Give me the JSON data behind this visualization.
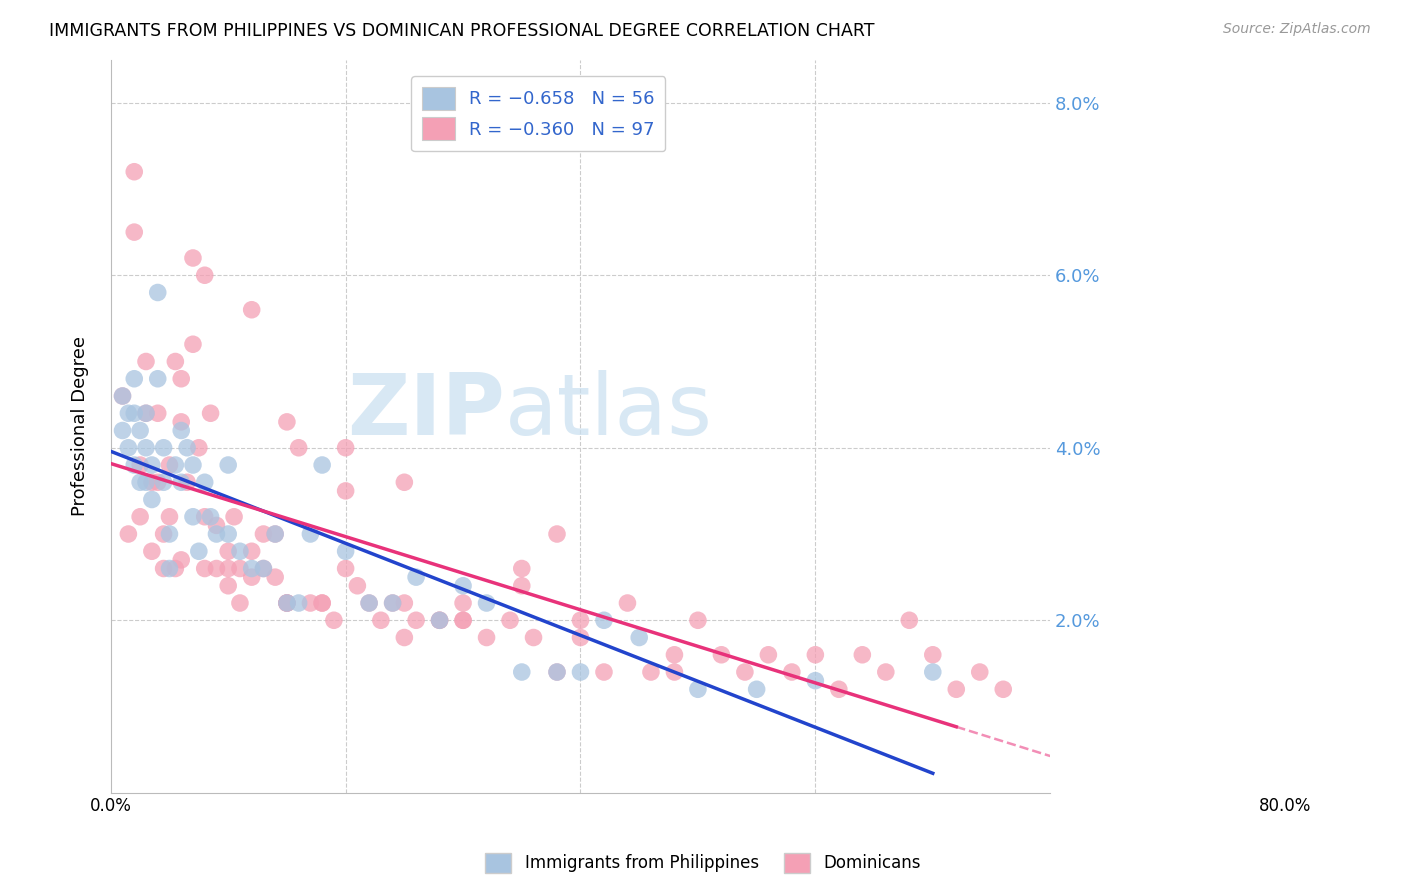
{
  "title": "IMMIGRANTS FROM PHILIPPINES VS DOMINICAN PROFESSIONAL DEGREE CORRELATION CHART",
  "source": "Source: ZipAtlas.com",
  "ylabel": "Professional Degree",
  "xlim": [
    0.0,
    0.8
  ],
  "ylim": [
    0.0,
    0.085
  ],
  "phil_color": "#a8c4e0",
  "dom_color": "#f4a0b5",
  "phil_line_color": "#2244cc",
  "dom_line_color": "#e8327a",
  "watermark_color": "#c8dff0",
  "phil_R": "-0.658",
  "phil_N": "56",
  "dom_R": "-0.360",
  "dom_N": "97",
  "philippines_x": [
    0.01,
    0.01,
    0.015,
    0.015,
    0.02,
    0.02,
    0.02,
    0.025,
    0.025,
    0.03,
    0.03,
    0.03,
    0.035,
    0.035,
    0.04,
    0.04,
    0.045,
    0.045,
    0.05,
    0.05,
    0.055,
    0.06,
    0.06,
    0.065,
    0.07,
    0.07,
    0.075,
    0.08,
    0.085,
    0.09,
    0.1,
    0.1,
    0.11,
    0.12,
    0.13,
    0.14,
    0.15,
    0.16,
    0.17,
    0.18,
    0.2,
    0.22,
    0.24,
    0.26,
    0.28,
    0.3,
    0.32,
    0.35,
    0.38,
    0.4,
    0.42,
    0.45,
    0.5,
    0.55,
    0.6,
    0.7
  ],
  "philippines_y": [
    0.046,
    0.042,
    0.044,
    0.04,
    0.048,
    0.044,
    0.038,
    0.042,
    0.036,
    0.044,
    0.04,
    0.036,
    0.038,
    0.034,
    0.058,
    0.048,
    0.04,
    0.036,
    0.03,
    0.026,
    0.038,
    0.042,
    0.036,
    0.04,
    0.038,
    0.032,
    0.028,
    0.036,
    0.032,
    0.03,
    0.038,
    0.03,
    0.028,
    0.026,
    0.026,
    0.03,
    0.022,
    0.022,
    0.03,
    0.038,
    0.028,
    0.022,
    0.022,
    0.025,
    0.02,
    0.024,
    0.022,
    0.014,
    0.014,
    0.014,
    0.02,
    0.018,
    0.012,
    0.012,
    0.013,
    0.014
  ],
  "dominican_x": [
    0.01,
    0.015,
    0.02,
    0.02,
    0.025,
    0.025,
    0.03,
    0.03,
    0.035,
    0.035,
    0.04,
    0.04,
    0.045,
    0.045,
    0.05,
    0.05,
    0.055,
    0.06,
    0.06,
    0.065,
    0.07,
    0.075,
    0.08,
    0.08,
    0.085,
    0.09,
    0.09,
    0.1,
    0.1,
    0.105,
    0.11,
    0.11,
    0.12,
    0.12,
    0.13,
    0.13,
    0.14,
    0.14,
    0.15,
    0.15,
    0.16,
    0.17,
    0.18,
    0.19,
    0.2,
    0.21,
    0.22,
    0.23,
    0.24,
    0.25,
    0.26,
    0.28,
    0.3,
    0.32,
    0.34,
    0.36,
    0.38,
    0.4,
    0.42,
    0.44,
    0.46,
    0.48,
    0.5,
    0.52,
    0.54,
    0.56,
    0.58,
    0.6,
    0.62,
    0.64,
    0.66,
    0.68,
    0.7,
    0.72,
    0.74,
    0.76,
    0.1,
    0.12,
    0.15,
    0.18,
    0.08,
    0.07,
    0.055,
    0.06,
    0.3,
    0.35,
    0.4,
    0.48,
    0.38,
    0.28,
    0.2,
    0.25,
    0.3,
    0.15,
    0.2,
    0.25,
    0.35
  ],
  "dominican_y": [
    0.046,
    0.03,
    0.072,
    0.065,
    0.032,
    0.038,
    0.05,
    0.044,
    0.036,
    0.028,
    0.044,
    0.036,
    0.03,
    0.026,
    0.038,
    0.032,
    0.026,
    0.027,
    0.043,
    0.036,
    0.052,
    0.04,
    0.026,
    0.032,
    0.044,
    0.031,
    0.026,
    0.028,
    0.024,
    0.032,
    0.026,
    0.022,
    0.028,
    0.025,
    0.03,
    0.026,
    0.03,
    0.025,
    0.043,
    0.022,
    0.04,
    0.022,
    0.022,
    0.02,
    0.026,
    0.024,
    0.022,
    0.02,
    0.022,
    0.022,
    0.02,
    0.02,
    0.02,
    0.018,
    0.02,
    0.018,
    0.014,
    0.02,
    0.014,
    0.022,
    0.014,
    0.014,
    0.02,
    0.016,
    0.014,
    0.016,
    0.014,
    0.016,
    0.012,
    0.016,
    0.014,
    0.02,
    0.016,
    0.012,
    0.014,
    0.012,
    0.026,
    0.056,
    0.022,
    0.022,
    0.06,
    0.062,
    0.05,
    0.048,
    0.022,
    0.024,
    0.018,
    0.016,
    0.03,
    0.02,
    0.04,
    0.036,
    0.02,
    0.022,
    0.035,
    0.018,
    0.026
  ]
}
